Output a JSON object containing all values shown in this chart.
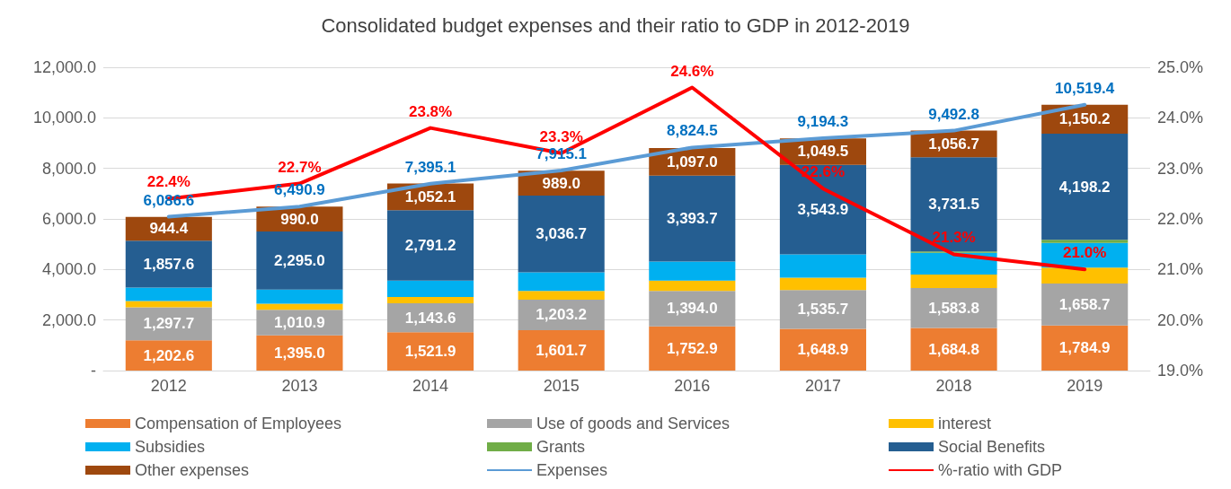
{
  "chart_data": {
    "type": "bar",
    "title": "Consolidated budget expenses and their ratio to GDP in 2012-2019",
    "categories": [
      "2012",
      "2013",
      "2014",
      "2015",
      "2016",
      "2017",
      "2018",
      "2019"
    ],
    "stacked": true,
    "series": [
      {
        "name": "Compensation of Employees",
        "color": "#ed7d31",
        "values": [
          1202.6,
          1395.0,
          1521.9,
          1601.7,
          1752.9,
          1648.9,
          1684.8,
          1784.9
        ],
        "value_labels": [
          "1,202.6",
          "1,395.0",
          "1,521.9",
          "1,601.7",
          "1,752.9",
          "1,648.9",
          "1,684.8",
          "1,784.9"
        ]
      },
      {
        "name": "Use of goods and Services",
        "color": "#a5a5a5",
        "values": [
          1297.7,
          1010.9,
          1143.6,
          1203.2,
          1394.0,
          1535.7,
          1583.8,
          1658.7
        ],
        "value_labels": [
          "1,297.7",
          "1,010.9",
          "1,143.6",
          "1,203.2",
          "1,394.0",
          "1,535.7",
          "1,583.8",
          "1,658.7"
        ]
      },
      {
        "name": "interest",
        "color": "#ffc000",
        "values": [
          250,
          240,
          250,
          350,
          410,
          490,
          530,
          630
        ]
      },
      {
        "name": "Subsidies",
        "color": "#00b0f0",
        "values": [
          530,
          560,
          640,
          730,
          760,
          920,
          860,
          980
        ]
      },
      {
        "name": "Grants",
        "color": "#70ad47",
        "values": [
          0,
          0,
          0,
          0,
          null,
          null,
          50,
          120
        ]
      },
      {
        "name": "Social Benefits",
        "color": "#255e91",
        "values": [
          1857.6,
          2295.0,
          2791.2,
          3036.7,
          3393.7,
          3543.9,
          3731.5,
          4198.2
        ],
        "value_labels": [
          "1,857.6",
          "2,295.0",
          "2,791.2",
          "3,036.7",
          "3,393.7",
          "3,543.9",
          "3,731.5",
          "4,198.2"
        ]
      },
      {
        "name": "Other expenses",
        "color": "#9e480e",
        "values": [
          944.4,
          990.0,
          1052.1,
          989.0,
          1097.0,
          1049.5,
          1056.7,
          1150.2
        ],
        "value_labels": [
          "944.4",
          "990.0",
          "1,052.1",
          "989.0",
          "1,097.0",
          "1,049.5",
          "1,056.7",
          "1,150.2"
        ]
      },
      {
        "name": "Expenses",
        "type": "line",
        "color": "#5b9bd5",
        "values": [
          6086.6,
          6490.9,
          7395.1,
          7915.1,
          8824.5,
          9194.3,
          9492.8,
          10519.4
        ],
        "value_labels": [
          "6,086.6",
          "6,490.9",
          "7,395.1",
          "7,915.1",
          "8,824.5",
          "9,194.3",
          "9,492.8",
          "10,519.4"
        ]
      },
      {
        "name": "%-ratio with GDP",
        "type": "line",
        "axis": "y2",
        "color": "#ff0000",
        "values": [
          22.4,
          22.7,
          23.8,
          23.3,
          24.6,
          22.6,
          21.3,
          21.0
        ],
        "value_labels": [
          "22.4%",
          "22.7%",
          "23.8%",
          "23.3%",
          "24.6%",
          "22.6%",
          "21.3%",
          "21.0%"
        ]
      }
    ],
    "ylim": [
      0,
      12000
    ],
    "yticks": [
      {
        "value": 0,
        "label": "-"
      },
      {
        "value": 2000,
        "label": "2,000.0"
      },
      {
        "value": 4000,
        "label": "4,000.0"
      },
      {
        "value": 6000,
        "label": "6,000.0"
      },
      {
        "value": 8000,
        "label": "8,000.0"
      },
      {
        "value": 10000,
        "label": "10,000.0"
      },
      {
        "value": 12000,
        "label": "12,000.0"
      }
    ],
    "y2lim": [
      19,
      25
    ],
    "y2ticks": [
      {
        "value": 19,
        "label": "19.0%"
      },
      {
        "value": 20,
        "label": "20.0%"
      },
      {
        "value": 21,
        "label": "21.0%"
      },
      {
        "value": 22,
        "label": "22.0%"
      },
      {
        "value": 23,
        "label": "23.0%"
      },
      {
        "value": 24,
        "label": "24.0%"
      },
      {
        "value": 25,
        "label": "25.0%"
      }
    ],
    "grid": "y",
    "legend": "bottom",
    "marker": "none",
    "line_style": "solid"
  }
}
